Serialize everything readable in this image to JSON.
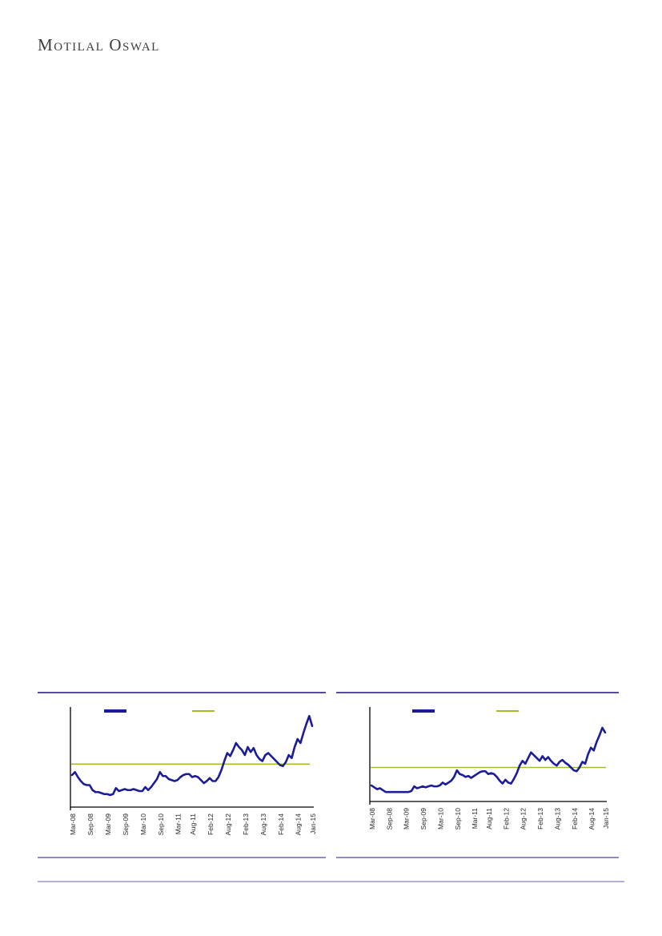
{
  "brand": {
    "text": "Motilal Oswal",
    "part1_cap": "M",
    "part1_rest": "OTILAL",
    "part2_cap": "O",
    "part2_rest": "SWAL"
  },
  "colors": {
    "series_line": "#1C1C99",
    "average_line": "#A2BE27",
    "title_rule": "#5A4A9C",
    "mid_rule": "#9188C4",
    "footer_rule": "#B6AFD8",
    "axis": "#000000",
    "tick_label": "#262626"
  },
  "chart_data": [
    {
      "type": "line",
      "position": "left",
      "title": "",
      "x_tick_labels": [
        "Mar-08",
        "Sep-08",
        "Mar-09",
        "Sep-09",
        "Mar-10",
        "Sep-10",
        "Mar-11",
        "Aug-11",
        "Feb-12",
        "Aug-12",
        "Feb-13",
        "Aug-13",
        "Feb-14",
        "Aug-14",
        "Jan-15"
      ],
      "x_tick_month_index": [
        0,
        6,
        12,
        18,
        24,
        30,
        36,
        41,
        47,
        53,
        59,
        65,
        71,
        77,
        82
      ],
      "x_months_total": 83,
      "ylim_norm": [
        0,
        1
      ],
      "y_axis_labels_visible": false,
      "grid": false,
      "legend": {
        "position": "top-inside",
        "entries": [
          {
            "swatch_color": "#1C1C99",
            "label": ""
          },
          {
            "swatch_color": "#A2BE27",
            "label": ""
          }
        ]
      },
      "series": [
        {
          "name": "value-line",
          "color": "#1C1C99",
          "values_norm": [
            0.32,
            0.35,
            0.3,
            0.26,
            0.23,
            0.22,
            0.22,
            0.17,
            0.15,
            0.15,
            0.14,
            0.13,
            0.13,
            0.12,
            0.13,
            0.19,
            0.16,
            0.17,
            0.18,
            0.17,
            0.17,
            0.18,
            0.17,
            0.16,
            0.16,
            0.2,
            0.17,
            0.2,
            0.24,
            0.28,
            0.35,
            0.31,
            0.31,
            0.28,
            0.27,
            0.26,
            0.27,
            0.3,
            0.32,
            0.33,
            0.33,
            0.3,
            0.31,
            0.3,
            0.27,
            0.24,
            0.26,
            0.29,
            0.26,
            0.26,
            0.3,
            0.37,
            0.46,
            0.54,
            0.51,
            0.57,
            0.64,
            0.6,
            0.57,
            0.52,
            0.6,
            0.55,
            0.59,
            0.52,
            0.48,
            0.46,
            0.52,
            0.54,
            0.51,
            0.48,
            0.45,
            0.42,
            0.41,
            0.45,
            0.52,
            0.49,
            0.6,
            0.68,
            0.64,
            0.74,
            0.83,
            0.91,
            0.81
          ]
        },
        {
          "name": "average-line",
          "color": "#A2BE27",
          "value_norm": 0.43
        }
      ]
    },
    {
      "type": "line",
      "position": "right",
      "title": "",
      "x_tick_labels": [
        "Mar-08",
        "Sep-08",
        "Mar-09",
        "Sep-09",
        "Mar-10",
        "Sep-10",
        "Mar-11",
        "Aug-11",
        "Feb-12",
        "Aug-12",
        "Feb-13",
        "Aug-13",
        "Feb-14",
        "Aug-14",
        "Jan-15"
      ],
      "x_tick_month_index": [
        0,
        6,
        12,
        18,
        24,
        30,
        36,
        41,
        47,
        53,
        59,
        65,
        71,
        77,
        82
      ],
      "x_months_total": 83,
      "ylim_norm": [
        0,
        1
      ],
      "y_axis_labels_visible": false,
      "grid": false,
      "legend": {
        "position": "top-inside",
        "entries": [
          {
            "swatch_color": "#1C1C99",
            "label": ""
          },
          {
            "swatch_color": "#A2BE27",
            "label": ""
          }
        ]
      },
      "series": [
        {
          "name": "value-line",
          "color": "#1C1C99",
          "values_norm": [
            0.17,
            0.15,
            0.13,
            0.14,
            0.12,
            0.1,
            0.1,
            0.1,
            0.1,
            0.1,
            0.1,
            0.1,
            0.1,
            0.1,
            0.11,
            0.16,
            0.14,
            0.15,
            0.16,
            0.15,
            0.16,
            0.17,
            0.16,
            0.16,
            0.17,
            0.2,
            0.18,
            0.2,
            0.22,
            0.26,
            0.33,
            0.29,
            0.28,
            0.26,
            0.27,
            0.25,
            0.27,
            0.29,
            0.31,
            0.32,
            0.32,
            0.29,
            0.3,
            0.29,
            0.26,
            0.22,
            0.19,
            0.23,
            0.2,
            0.19,
            0.24,
            0.3,
            0.38,
            0.43,
            0.4,
            0.46,
            0.52,
            0.49,
            0.46,
            0.43,
            0.48,
            0.44,
            0.47,
            0.43,
            0.4,
            0.38,
            0.42,
            0.44,
            0.41,
            0.39,
            0.36,
            0.33,
            0.32,
            0.36,
            0.42,
            0.4,
            0.5,
            0.57,
            0.54,
            0.63,
            0.7,
            0.78,
            0.73
          ]
        },
        {
          "name": "average-line",
          "color": "#A2BE27",
          "value_norm": 0.36
        }
      ]
    }
  ]
}
